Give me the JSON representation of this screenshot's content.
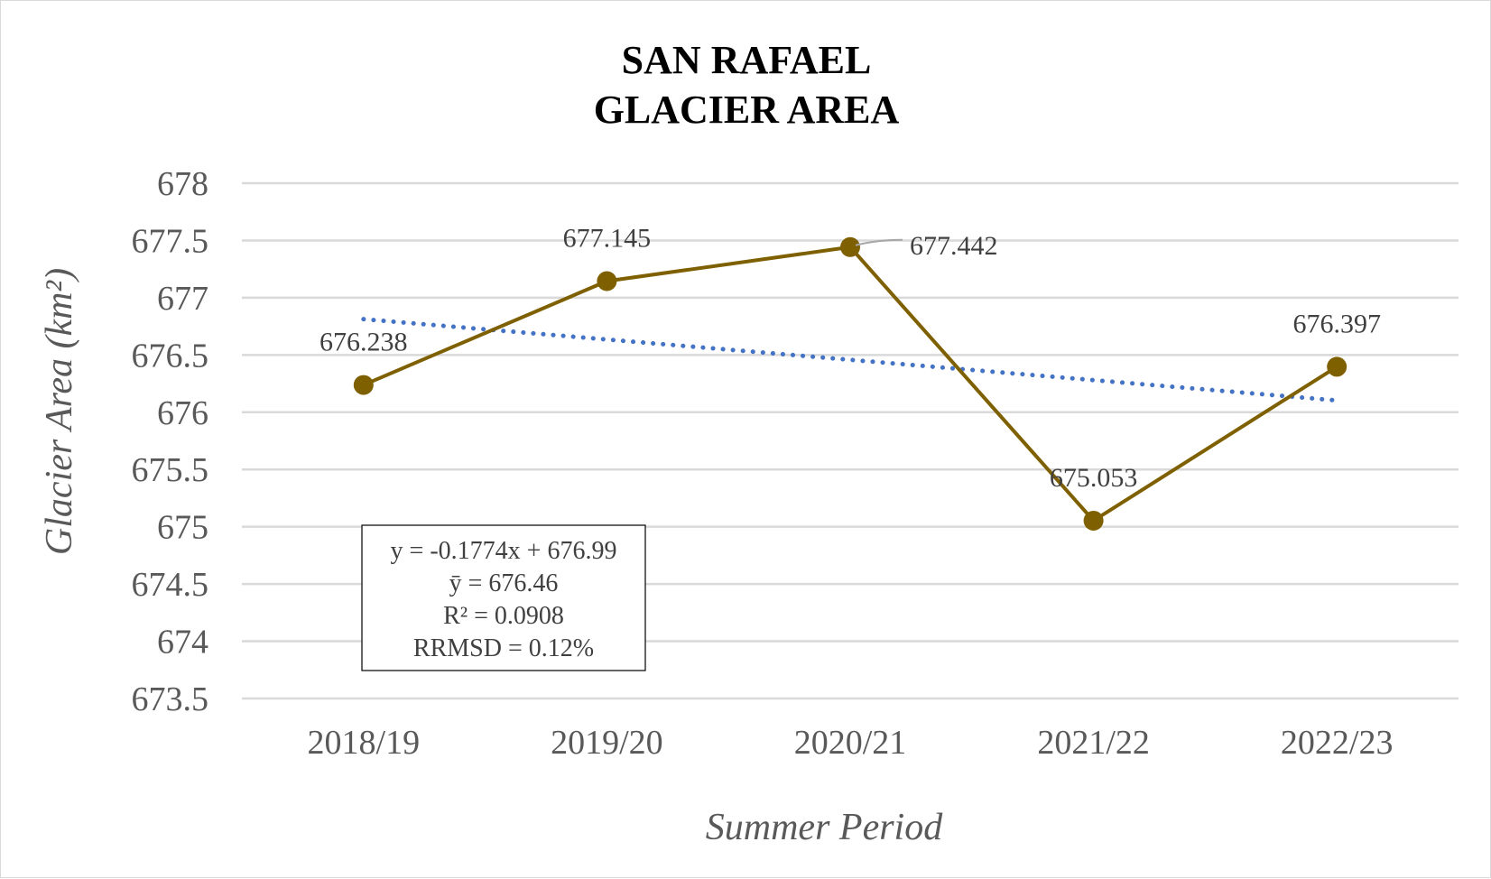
{
  "chart_data": {
    "type": "line",
    "title_lines": [
      "SAN RAFAEL",
      "GLACIER AREA"
    ],
    "xlabel": "Summer Period",
    "ylabel": "Glacier Area (km²)",
    "categories": [
      "2018/19",
      "2019/20",
      "2020/21",
      "2021/22",
      "2022/23"
    ],
    "series": [
      {
        "values": [
          676.238,
          677.145,
          677.442,
          675.053,
          676.397
        ],
        "data_labels": [
          "676.238",
          "677.145",
          "677.442",
          "675.053",
          "676.397"
        ],
        "color": "#7f6000"
      }
    ],
    "trendline": {
      "type": "linear",
      "slope": -0.1774,
      "intercept": 676.99,
      "color": "#4472c4",
      "style": "dotted"
    },
    "stats_box": [
      "y = -0.1774x + 676.99",
      "ȳ  = 676.46",
      "R² = 0.0908",
      "RRMSD = 0.12%"
    ],
    "ylim": [
      673.5,
      678
    ],
    "yticks": [
      "673.5",
      "674",
      "674.5",
      "675",
      "675.5",
      "676",
      "676.5",
      "677",
      "677.5",
      "678"
    ],
    "ytick_values": [
      673.5,
      674,
      674.5,
      675,
      675.5,
      676,
      676.5,
      677,
      677.5,
      678
    ],
    "grid": true,
    "legend": "none"
  }
}
